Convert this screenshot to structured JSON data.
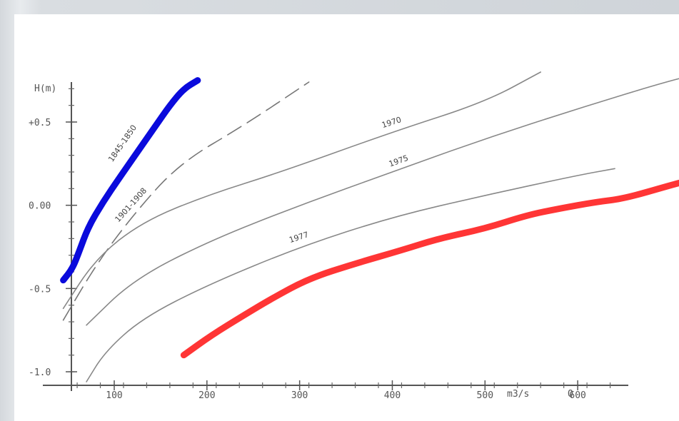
{
  "chart_data": {
    "type": "line",
    "ylabel": "H(m)",
    "xlabel": "m3/s",
    "x_axis_extra_label": "Q",
    "xlim": [
      40,
      870
    ],
    "ylim": [
      -1.1,
      0.85
    ],
    "x_ticks": [
      {
        "value": 100,
        "label": "100"
      },
      {
        "value": 200,
        "label": "200"
      },
      {
        "value": 300,
        "label": "300"
      },
      {
        "value": 400,
        "label": "400"
      },
      {
        "value": 500,
        "label": "500"
      },
      {
        "value": 600,
        "label": "600"
      }
    ],
    "y_ticks": [
      {
        "value": 0.5,
        "label": "+0.5"
      },
      {
        "value": 0.0,
        "label": "0.00"
      },
      {
        "value": -0.5,
        "label": "-0.5"
      },
      {
        "value": -1.0,
        "label": "-1.0"
      }
    ],
    "series": [
      {
        "name": "1845-1850",
        "color": "#0a0adc",
        "style": "thick",
        "points": [
          [
            45,
            -0.45
          ],
          [
            55,
            -0.38
          ],
          [
            62,
            -0.28
          ],
          [
            72,
            -0.13
          ],
          [
            88,
            0.02
          ],
          [
            105,
            0.16
          ],
          [
            125,
            0.32
          ],
          [
            145,
            0.48
          ],
          [
            160,
            0.6
          ],
          [
            175,
            0.7
          ],
          [
            190,
            0.75
          ]
        ]
      },
      {
        "name": "1901-1908",
        "color": "#777777",
        "style": "dashed",
        "points": [
          [
            45,
            -0.69
          ],
          [
            80,
            -0.36
          ],
          [
            120,
            -0.06
          ],
          [
            170,
            0.25
          ],
          [
            240,
            0.48
          ],
          [
            310,
            0.74
          ]
        ]
      },
      {
        "name": "1970",
        "color": "#888888",
        "style": "solid",
        "points": [
          [
            45,
            -0.62
          ],
          [
            80,
            -0.32
          ],
          [
            130,
            -0.1
          ],
          [
            200,
            0.06
          ],
          [
            280,
            0.2
          ],
          [
            400,
            0.44
          ],
          [
            500,
            0.62
          ],
          [
            560,
            0.8
          ]
        ]
      },
      {
        "name": "1975",
        "color": "#888888",
        "style": "solid",
        "points": [
          [
            70,
            -0.72
          ],
          [
            120,
            -0.45
          ],
          [
            200,
            -0.22
          ],
          [
            300,
            0.0
          ],
          [
            400,
            0.2
          ],
          [
            500,
            0.4
          ],
          [
            600,
            0.58
          ],
          [
            700,
            0.75
          ],
          [
            740,
            0.8
          ]
        ]
      },
      {
        "name": "1977",
        "color": "#888888",
        "style": "solid",
        "points": [
          [
            70,
            -1.06
          ],
          [
            90,
            -0.88
          ],
          [
            130,
            -0.68
          ],
          [
            200,
            -0.48
          ],
          [
            300,
            -0.25
          ],
          [
            400,
            -0.07
          ],
          [
            500,
            0.06
          ],
          [
            600,
            0.18
          ],
          [
            640,
            0.22
          ]
        ]
      },
      {
        "name": "",
        "color": "#ff3535",
        "style": "thick",
        "points": [
          [
            175,
            -0.9
          ],
          [
            205,
            -0.78
          ],
          [
            240,
            -0.66
          ],
          [
            270,
            -0.56
          ],
          [
            310,
            -0.44
          ],
          [
            360,
            -0.35
          ],
          [
            410,
            -0.27
          ],
          [
            450,
            -0.2
          ],
          [
            500,
            -0.14
          ],
          [
            545,
            -0.06
          ],
          [
            580,
            -0.02
          ],
          [
            620,
            0.02
          ],
          [
            650,
            0.04
          ],
          [
            700,
            0.12
          ],
          [
            720,
            0.15
          ]
        ]
      }
    ]
  }
}
